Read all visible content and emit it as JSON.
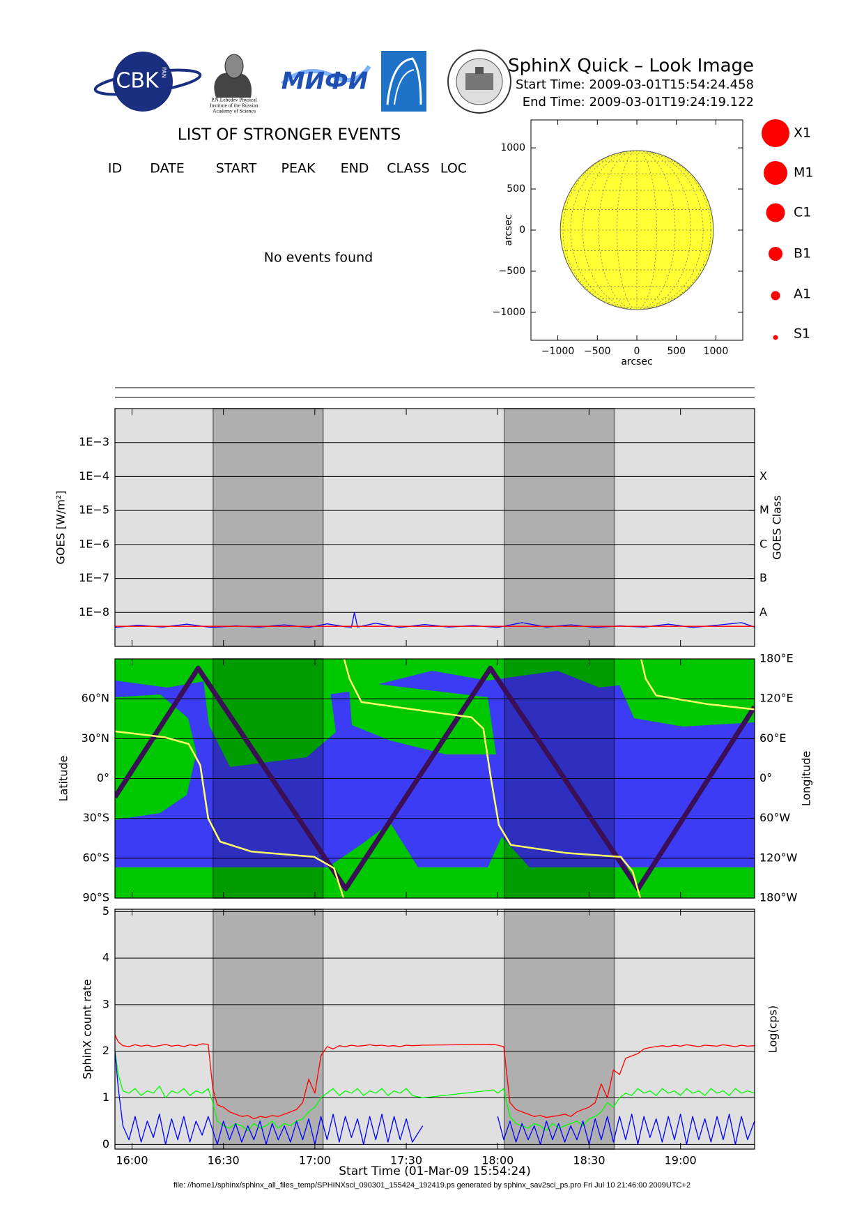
{
  "header": {
    "title": "SphinX Quick – Look Image",
    "start_time": "Start Time: 2009-03-01T15:54:24.458",
    "end_time": "End Time: 2009-03-01T19:24:19.122",
    "logos": {
      "cbk": "CBK",
      "pan": "PAN",
      "lebedev": [
        "P.N.Lebedev Physical",
        "Institute of the Russian",
        "Academy of Science"
      ],
      "mephi": "МИФИ"
    }
  },
  "events": {
    "title": "LIST OF STRONGER EVENTS",
    "columns": [
      "ID",
      "DATE",
      "START",
      "PEAK",
      "END",
      "CLASS",
      "LOC"
    ],
    "message": "No events found"
  },
  "class_legend": [
    "X1",
    "M1",
    "C1",
    "B1",
    "A1",
    "S1"
  ],
  "footer": "file: //home1/sphinx/sphinx_all_files_temp/SPHINXsci_090301_155424_192419.ps generated by sphinx_sav2sci_ps.pro Fri Jul 10 21:46:00 2009UTC+2",
  "chart_data": [
    {
      "type": "disk",
      "xlabel": "arcsec",
      "ylabel": "arcsec",
      "disk_radius": 968,
      "disk_color": "#ffff33",
      "xlim": [
        -1340,
        1340
      ],
      "ylim": [
        -1340,
        1340
      ],
      "xticks": [
        {
          "value": -1000,
          "label": "−1000"
        },
        {
          "value": -500,
          "label": "−500"
        },
        0,
        500,
        1000
      ],
      "yticks": [
        {
          "value": -1000,
          "label": "−1000"
        },
        {
          "value": -500,
          "label": "−500"
        },
        0,
        500,
        1000
      ]
    },
    {
      "type": "line",
      "ylabel": "GOES [W/m²]",
      "y2label": "GOES Class",
      "ylog": true,
      "y2log": true,
      "grid": true,
      "background": "#e0e0e0",
      "xlim": [
        954.4,
        1164.32
      ],
      "xticks": [
        960,
        990,
        1020,
        1050,
        1080,
        1110,
        1140
      ],
      "ylim": [
        1e-09,
        0.01
      ],
      "yticks": [
        {
          "value": 0.001,
          "label": "1E−3"
        },
        {
          "value": 0.0001,
          "label": "1E−4"
        },
        {
          "value": 1e-05,
          "label": "1E−5"
        },
        {
          "value": 1e-06,
          "label": "1E−6"
        },
        {
          "value": 1e-07,
          "label": "1E−7"
        },
        {
          "value": 1e-08,
          "label": "1E−8"
        }
      ],
      "y2lim": [
        1e-09,
        0.01
      ],
      "y2ticks": [
        {
          "value": 0.0001,
          "label": "X"
        },
        {
          "value": 1e-05,
          "label": "M"
        },
        {
          "value": 1e-06,
          "label": "C"
        },
        {
          "value": 1e-07,
          "label": "B"
        },
        {
          "value": 1e-08,
          "label": "A"
        }
      ],
      "shaded_intervals": [
        [
          986.6,
          1022.7
        ],
        [
          1082.2,
          1118.3
        ]
      ],
      "x": [
        954.4,
        962,
        970,
        978,
        986,
        994,
        1002,
        1010,
        1018,
        1024,
        1030,
        1032,
        1033,
        1034,
        1040,
        1048,
        1056,
        1064,
        1072,
        1080,
        1088,
        1096,
        1104,
        1112,
        1120,
        1128,
        1136,
        1144,
        1152,
        1160,
        1164.3
      ],
      "series": [
        {
          "color": "#0000ff",
          "values": [
            3.6e-09,
            4.2e-09,
            3.7e-09,
            4.5e-09,
            3.6e-09,
            4e-09,
            3.7e-09,
            4.3e-09,
            3.6e-09,
            4.6e-09,
            3.8e-09,
            3.7e-09,
            1e-08,
            3.7e-09,
            4.8e-09,
            3.6e-09,
            4.4e-09,
            3.7e-09,
            4.1e-09,
            3.6e-09,
            5e-09,
            3.7e-09,
            4.3e-09,
            3.6e-09,
            4e-09,
            3.7e-09,
            4.5e-09,
            3.6e-09,
            4.2e-09,
            5e-09,
            3.7e-09
          ]
        },
        {
          "color": "#ff0000",
          "values": [
            3.9e-09,
            3.9e-09,
            3.9e-09,
            3.9e-09,
            3.9e-09,
            3.9e-09,
            3.9e-09,
            3.9e-09,
            3.9e-09,
            3.9e-09,
            3.9e-09,
            3.9e-09,
            3.9e-09,
            3.9e-09,
            3.9e-09,
            3.9e-09,
            3.9e-09,
            3.9e-09,
            3.9e-09,
            3.9e-09,
            3.9e-09,
            3.9e-09,
            3.9e-09,
            3.9e-09,
            3.9e-09,
            3.9e-09,
            3.9e-09,
            3.9e-09,
            3.9e-09,
            3.9e-09,
            3.9e-09
          ]
        }
      ]
    },
    {
      "type": "line",
      "ylabel": "Latitude",
      "y2label": "Longitude",
      "grid": true,
      "xlim": [
        954.4,
        1164.32
      ],
      "xticks": [
        960,
        990,
        1020,
        1050,
        1080,
        1110,
        1140
      ],
      "ylim": [
        -90,
        90
      ],
      "yticks": [
        {
          "value": -90,
          "label": "90°S"
        },
        {
          "value": -60,
          "label": "60°S"
        },
        {
          "value": -30,
          "label": "30°S"
        },
        {
          "value": 0,
          "label": "0°"
        },
        {
          "value": 30,
          "label": "30°N"
        },
        {
          "value": 60,
          "label": "60°N"
        }
      ],
      "y2lim": [
        -180,
        180
      ],
      "y2ticks": [
        {
          "value": -180,
          "label": "180°W"
        },
        {
          "value": -120,
          "label": "120°W"
        },
        {
          "value": -60,
          "label": "60°W"
        },
        {
          "value": 0,
          "label": "0°"
        },
        {
          "value": 60,
          "label": "60°E"
        },
        {
          "value": 120,
          "label": "120°E"
        },
        {
          "value": 180,
          "label": "180°E"
        }
      ],
      "shaded_intervals": [
        [
          986.6,
          1022.7
        ],
        [
          1082.2,
          1118.3
        ]
      ],
      "series": [
        {
          "color": "#3a0f55",
          "x": [
            954.4,
            981.7,
            1030.1,
            1077.6,
            1126.1,
            1164.3
          ],
          "values": [
            -14,
            83,
            -83,
            83,
            -83,
            54
          ]
        },
        {
          "color": "#ffff66",
          "axis": "y2",
          "x": [
            954.4,
            970.8,
            978.6,
            982.4,
            985.0,
            988.9,
            999.2,
            1019.8,
            1026.3,
            1029.4,
            null,
            1029.6,
            1031.4,
            1035.3,
            1050.8,
            1071.4,
            1075.3,
            1077.8,
            1080.4,
            1084.3,
            1102.3,
            1120.4,
            1124.3,
            1126.8,
            null,
            1127.1,
            1128.6,
            1132.0,
            1148.8,
            1164.3
          ],
          "values": [
            71,
            62,
            52,
            20,
            -60,
            -95,
            -110,
            -118,
            -135,
            -180,
            null,
            180,
            150,
            115,
            105,
            92,
            75,
            0,
            -70,
            -100,
            -112,
            -118,
            -140,
            -180,
            null,
            180,
            150,
            125,
            112,
            104
          ]
        }
      ]
    },
    {
      "type": "line",
      "ylabel": "SphinX count rate",
      "y2label": "Log(cps)",
      "xlabel": "Start Time (01-Mar-09 15:54:24)",
      "grid": true,
      "background": "#e0e0e0",
      "xlim": [
        954.4,
        1164.32
      ],
      "xticks": [
        {
          "value": 960,
          "label": "16:00"
        },
        {
          "value": 990,
          "label": "16:30"
        },
        {
          "value": 1020,
          "label": "17:00"
        },
        {
          "value": 1050,
          "label": "17:30"
        },
        {
          "value": 1080,
          "label": "18:00"
        },
        {
          "value": 1110,
          "label": "18:30"
        },
        {
          "value": 1140,
          "label": "19:00"
        }
      ],
      "ylim": [
        -0.1,
        5.05
      ],
      "yticks": [
        0,
        1,
        2,
        3,
        4,
        5
      ],
      "shaded_intervals": [
        [
          986.6,
          1022.7
        ],
        [
          1082.2,
          1118.3
        ]
      ],
      "x": [
        954.4,
        955.5,
        957,
        959,
        961,
        963,
        965,
        967,
        969,
        971,
        973,
        975,
        977,
        979,
        981,
        983,
        985,
        986.5,
        988,
        990,
        992,
        994,
        996,
        998,
        1000,
        1002,
        1004,
        1006,
        1008,
        1010,
        1012,
        1014,
        1016,
        1018,
        1020,
        1022,
        1024,
        1026,
        1028,
        1030,
        1032,
        1034,
        1036,
        1038,
        1040,
        1042,
        1044,
        1046,
        1048,
        1050,
        1052,
        1055.4,
        1078.7,
        1080,
        1082,
        1084,
        1086,
        1088,
        1090,
        1092,
        1094,
        1096,
        1098,
        1100,
        1102,
        1104,
        1106,
        1108,
        1110,
        1112,
        1114,
        1116,
        1118,
        1120,
        1122,
        1124,
        1126,
        1128,
        1130,
        1132,
        1134,
        1136,
        1138,
        1140,
        1142,
        1144,
        1146,
        1148,
        1150,
        1152,
        1154,
        1156,
        1158,
        1160,
        1162,
        1164.3
      ],
      "series": [
        {
          "color": "#ff0000",
          "values": [
            2.35,
            2.2,
            2.12,
            2.1,
            2.14,
            2.11,
            2.13,
            2.1,
            2.12,
            2.15,
            2.11,
            2.13,
            2.1,
            2.14,
            2.12,
            2.16,
            2.15,
            1.2,
            0.85,
            0.8,
            0.7,
            0.65,
            0.6,
            0.62,
            0.55,
            0.6,
            0.58,
            0.62,
            0.6,
            0.65,
            0.7,
            0.75,
            0.9,
            1.4,
            1.1,
            1.9,
            2.1,
            2.05,
            2.12,
            2.1,
            2.13,
            2.11,
            2.12,
            2.14,
            2.12,
            2.13,
            2.11,
            2.12,
            2.1,
            2.13,
            2.12,
            2.13,
            2.15,
            2.13,
            2.1,
            0.9,
            0.75,
            0.7,
            0.65,
            0.6,
            0.62,
            0.58,
            0.6,
            0.62,
            0.65,
            0.6,
            0.7,
            0.75,
            0.8,
            0.9,
            1.3,
            1.0,
            1.6,
            1.5,
            1.85,
            1.9,
            1.95,
            2.05,
            2.08,
            2.1,
            2.12,
            2.1,
            2.13,
            2.11,
            2.14,
            2.12,
            2.1,
            2.13,
            2.12,
            2.11,
            2.14,
            2.12,
            2.1,
            2.13,
            2.11,
            2.12
          ]
        },
        {
          "color": "#00ff00",
          "values": [
            2.0,
            1.5,
            1.15,
            1.1,
            1.2,
            1.05,
            1.15,
            1.1,
            1.25,
            1.0,
            1.15,
            1.1,
            1.2,
            1.05,
            1.15,
            1.1,
            1.2,
            0.9,
            0.5,
            0.4,
            0.35,
            0.45,
            0.4,
            0.3,
            0.45,
            0.35,
            0.4,
            0.5,
            0.35,
            0.45,
            0.4,
            0.5,
            0.55,
            0.7,
            0.8,
            1.0,
            1.1,
            1.2,
            1.05,
            1.15,
            1.1,
            1.2,
            1.05,
            1.15,
            1.1,
            1.2,
            1.05,
            1.15,
            1.1,
            1.2,
            1.05,
            1.0,
            1.17,
            1.1,
            1.2,
            0.6,
            0.45,
            0.4,
            0.35,
            0.45,
            0.4,
            0.3,
            0.45,
            0.35,
            0.4,
            0.45,
            0.5,
            0.4,
            0.55,
            0.6,
            0.7,
            0.9,
            0.8,
            1.0,
            1.1,
            1.05,
            1.2,
            1.1,
            1.15,
            1.05,
            1.2,
            1.1,
            1.15,
            1.05,
            1.2,
            1.1,
            1.15,
            1.05,
            1.2,
            1.1,
            1.15,
            1.05,
            1.2,
            1.1,
            1.15,
            1.1
          ]
        },
        {
          "color": "#0000ff",
          "values": [
            2.0,
            1.2,
            0.4,
            0.1,
            0.6,
            0.05,
            0.5,
            0.15,
            0.65,
            0.0,
            0.55,
            0.1,
            0.6,
            0.05,
            0.5,
            0.2,
            0.6,
            0.3,
            0.0,
            0.5,
            0.1,
            0.45,
            0.05,
            0.4,
            0.1,
            0.5,
            0.0,
            0.45,
            0.1,
            0.4,
            0.05,
            0.5,
            0.1,
            0.55,
            0.0,
            0.6,
            0.1,
            0.65,
            0.05,
            0.6,
            0.15,
            0.55,
            0.0,
            0.6,
            0.1,
            0.65,
            0.05,
            0.6,
            0.1,
            0.55,
            0.05,
            0.4,
            null,
            0.6,
            0.1,
            0.5,
            0.05,
            0.45,
            0.1,
            0.4,
            0.0,
            0.5,
            0.1,
            0.45,
            0.05,
            0.4,
            0.1,
            0.5,
            0.0,
            0.55,
            0.1,
            0.6,
            0.05,
            0.6,
            0.1,
            0.65,
            0.0,
            0.6,
            0.15,
            0.55,
            0.05,
            0.6,
            0.1,
            0.65,
            0.0,
            0.6,
            0.1,
            0.55,
            0.05,
            0.6,
            0.1,
            0.65,
            0.0,
            0.6,
            0.1,
            0.5
          ]
        }
      ]
    }
  ]
}
